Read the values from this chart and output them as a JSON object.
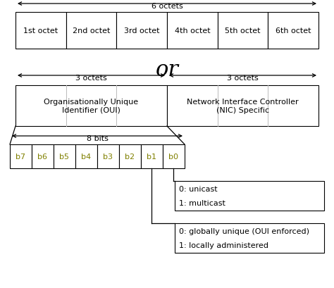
{
  "bg_color": "#ffffff",
  "text_color": "#000000",
  "bit_label_color": "#808000",
  "row1_labels": [
    "1st octet",
    "2nd octet",
    "3rd octet",
    "4th octet",
    "5th octet",
    "6th octet"
  ],
  "row1_arrow_label": "6 octets",
  "row2_left_label": "Organisationally Unique\nIdentifier (OUI)",
  "row2_right_label": "Network Interface Controller\n(NIC) Specific",
  "row2_left_arrow": "3 octets",
  "row2_right_arrow": "3 octets",
  "bits_labels": [
    "b7",
    "b6",
    "b5",
    "b4",
    "b3",
    "b2",
    "b1",
    "b0"
  ],
  "bits_arrow_label": "8 bits",
  "annotation1_lines": [
    "0: unicast",
    "1: multicast"
  ],
  "annotation2_lines": [
    "0: globally unique (OUI enforced)",
    "1: locally administered"
  ],
  "or_text": "or",
  "figsize": [
    4.74,
    4.1
  ],
  "dpi": 100
}
